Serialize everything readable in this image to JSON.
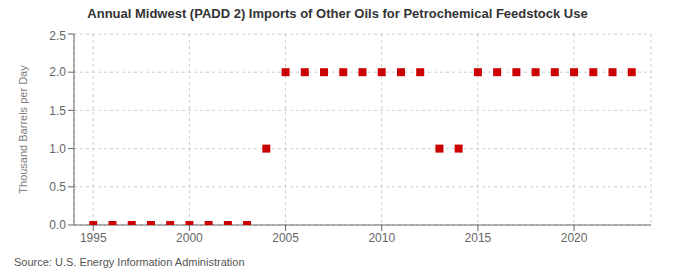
{
  "chart_data": {
    "type": "scatter",
    "title": "Annual Midwest (PADD 2) Imports of Other Oils for Petrochemical Feedstock Use",
    "ylabel": "Thousand Barrels per Day",
    "annotations": [
      "Source: U.S. Energy Information Administration"
    ],
    "x": [
      1995,
      1996,
      1997,
      1998,
      1999,
      2000,
      2001,
      2002,
      2003,
      2004,
      2005,
      2006,
      2007,
      2008,
      2009,
      2010,
      2011,
      2012,
      2013,
      2014,
      2015,
      2016,
      2017,
      2018,
      2019,
      2020,
      2021,
      2022,
      2023
    ],
    "values": [
      0,
      0,
      0,
      0,
      0,
      0,
      0,
      0,
      0,
      1,
      2,
      2,
      2,
      2,
      2,
      2,
      2,
      2,
      1,
      1,
      2,
      2,
      2,
      2,
      2,
      2,
      2,
      2,
      2
    ],
    "color": "#cc0000",
    "marker": "square",
    "xlim": [
      1994,
      2024
    ],
    "xticks": [
      1995,
      2000,
      2005,
      2010,
      2015,
      2020
    ],
    "ylim": [
      0,
      2.5
    ],
    "yticks": [
      {
        "value": 0,
        "label": "0.0"
      },
      0.5,
      {
        "value": 1,
        "label": "1.0"
      },
      1.5,
      {
        "value": 2,
        "label": "2.0"
      },
      2.5
    ],
    "grid": true
  }
}
